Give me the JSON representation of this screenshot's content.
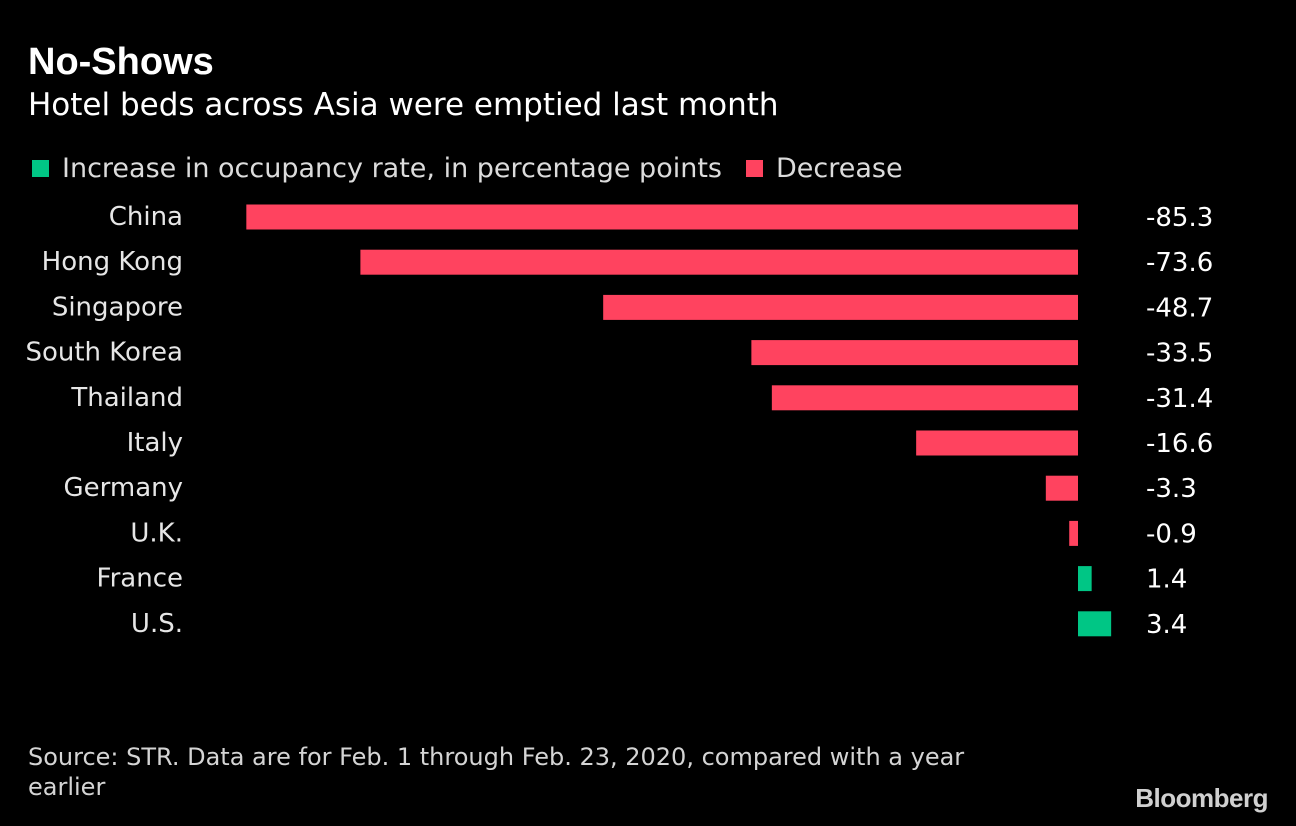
{
  "header": {
    "title": "No-Shows",
    "subtitle": "Hotel beds across Asia were emptied last month"
  },
  "legend": {
    "increase_label": "Increase in occupancy rate, in percentage points",
    "decrease_label": "Decrease"
  },
  "colors": {
    "background": "#000000",
    "increase": "#00c685",
    "decrease": "#ff435f",
    "label_text": "#e6e6e6",
    "value_text": "#ffffff"
  },
  "chart_data": {
    "type": "bar",
    "orientation": "horizontal",
    "title": "No-Shows",
    "subtitle": "Hotel beds across Asia were emptied last month",
    "categories": [
      "China",
      "Hong Kong",
      "Singapore",
      "South Korea",
      "Thailand",
      "Italy",
      "Germany",
      "U.K.",
      "France",
      "U.S."
    ],
    "values": [
      -85.3,
      -73.6,
      -48.7,
      -33.5,
      -31.4,
      -16.6,
      -3.3,
      -0.9,
      1.4,
      3.4
    ],
    "value_labels": [
      "-85.3",
      "-73.6",
      "-48.7",
      "-33.5",
      "-31.4",
      "-16.6",
      "-3.3",
      "-0.9",
      "1.4",
      "3.4"
    ],
    "legend": [
      "Increase in occupancy rate, in percentage points",
      "Decrease"
    ],
    "legend_position": "top-left",
    "grid": false,
    "xlim": [
      -85.3,
      3.4
    ]
  },
  "footer": {
    "source": "Source: STR. Data are for Feb. 1 through Feb. 23, 2020, compared with a year earlier",
    "brand": "Bloomberg"
  }
}
